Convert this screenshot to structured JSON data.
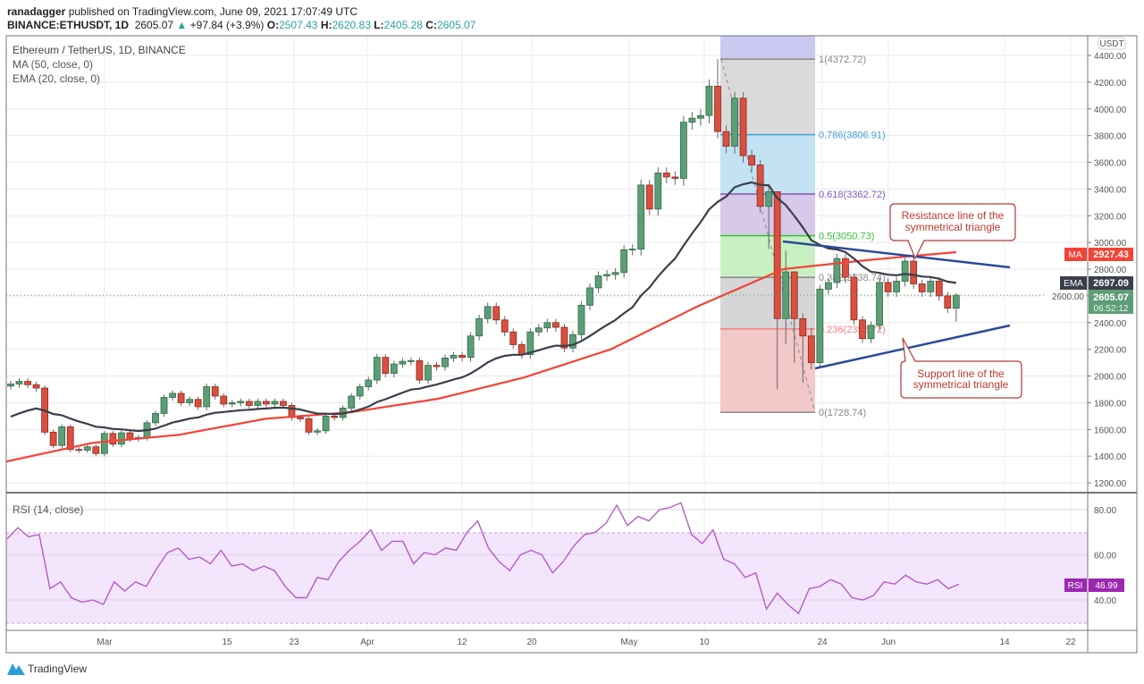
{
  "header": {
    "author": "ranadagger",
    "published": "published on TradingView.com, June 09, 2021 17:07:49 UTC",
    "symbol": "BINANCE:ETHUSDT, 1D",
    "last": "2605.07",
    "change": "+97.84 (+3.9%)",
    "o_label": "O:",
    "o": "2507.43",
    "h_label": "H:",
    "h": "2620.83",
    "l_label": "L:",
    "l": "2405.28",
    "c_label": "C:",
    "c": "2605.07"
  },
  "legend": {
    "title": "Ethereum / TetherUS, 1D, BINANCE",
    "ma": "MA (50, close, 0)",
    "ema": "EMA (20, close, 0)",
    "rsi": "RSI (14, close)"
  },
  "tags": {
    "currency": "USDT",
    "ma_label": "MA",
    "ma_value": "2927.43",
    "ema_label": "EMA",
    "ema_value": "2697.09",
    "price": "2605.07",
    "countdown": "06:52:12",
    "rsi_label": "RSI",
    "rsi_value": "46.99"
  },
  "annotations": {
    "resistance": [
      "Resistance line of the",
      "symmetrical triangle"
    ],
    "support": [
      "Support line of the",
      "symmetrical triangle"
    ]
  },
  "fib": [
    {
      "label": "1(4372.72)",
      "price": 4372.72,
      "color": "#888888"
    },
    {
      "label": "0.786(3806.91)",
      "price": 3806.91,
      "color": "#3fa0d8"
    },
    {
      "label": "0.618(3362.72)",
      "price": 3362.72,
      "color": "#7e57c2"
    },
    {
      "label": "0.5(3050.73)",
      "price": 3050.73,
      "color": "#33c533"
    },
    {
      "label": "0.382(2738.74)",
      "price": 2738.74,
      "color": "#888888"
    },
    {
      "label": "0.236(2352.72)",
      "price": 2352.72,
      "color": "#f08080"
    },
    {
      "label": "0(1728.74)",
      "price": 1728.74,
      "color": "#888888"
    }
  ],
  "footer": {
    "brand": "TradingView"
  },
  "colors": {
    "up": "#5e9e77",
    "down": "#d9503f",
    "ma": "#f44336",
    "ema": "#3a3f4b",
    "rsi": "#b35cc9",
    "trend": "#2a4a9a"
  },
  "chart_data": {
    "type": "candlestick",
    "title": "Ethereum / TetherUS, 1D, BINANCE",
    "start_date": "2021-02-18",
    "closes": [
      1940,
      1960,
      1935,
      1910,
      1580,
      1480,
      1620,
      1450,
      1445,
      1470,
      1420,
      1570,
      1490,
      1575,
      1530,
      1540,
      1650,
      1720,
      1840,
      1870,
      1800,
      1825,
      1770,
      1920,
      1850,
      1790,
      1800,
      1810,
      1780,
      1810,
      1790,
      1810,
      1780,
      1690,
      1680,
      1580,
      1590,
      1700,
      1690,
      1760,
      1850,
      1920,
      1970,
      2140,
      2020,
      2090,
      2110,
      2115,
      1970,
      2080,
      2070,
      2135,
      2155,
      2140,
      2300,
      2430,
      2520,
      2420,
      2330,
      2235,
      2160,
      2330,
      2360,
      2400,
      2365,
      2210,
      2310,
      2530,
      2660,
      2750,
      2760,
      2775,
      2945,
      2950,
      3430,
      3250,
      3520,
      3490,
      3480,
      3900,
      3930,
      3950,
      4170,
      3830,
      3720,
      4080,
      3650,
      3580,
      3270,
      3380,
      2430,
      2780,
      2430,
      2300,
      2100,
      2650,
      2700,
      2880,
      2740,
      2420,
      2280,
      2380,
      2700,
      2630,
      2710,
      2860,
      2690,
      2630,
      2710,
      2600,
      2507.43,
      2605.07
    ],
    "ma50": [
      1360,
      1500,
      1560,
      1680,
      1730,
      1830,
      1990,
      2200,
      2520,
      2800,
      2870,
      2927.43
    ],
    "ema20_last": 2697.09,
    "rsi": [
      67,
      72,
      68,
      69,
      45,
      48,
      41,
      39,
      40,
      38,
      48,
      44,
      48,
      46,
      54,
      61,
      63,
      58,
      59,
      56,
      62,
      55,
      56,
      53,
      55,
      53,
      46,
      41,
      41,
      50,
      49,
      57,
      62,
      66,
      71,
      62,
      66,
      66,
      56,
      61,
      60,
      63,
      62,
      70,
      75,
      63,
      57,
      53,
      60,
      62,
      60,
      52,
      57,
      64,
      69,
      70,
      74,
      82,
      73,
      77,
      75,
      80,
      81,
      83,
      69,
      65,
      71,
      58,
      56,
      50,
      52,
      36,
      43,
      38,
      34,
      45,
      46,
      49,
      47,
      41,
      40,
      42,
      48,
      47,
      51,
      48,
      47,
      49,
      45,
      46.99
    ],
    "y_ticks": [
      1200,
      1400,
      1600,
      1800,
      2000,
      2200,
      2400,
      2600,
      2800,
      3000,
      3200,
      3400,
      3600,
      3800,
      4000,
      4200,
      4400
    ],
    "rsi_ticks": [
      80,
      60,
      40
    ],
    "x_ticks": [
      "Mar",
      "15",
      "23",
      "Apr",
      "12",
      "20",
      "May",
      "10",
      "24",
      "Jun",
      "14",
      "22"
    ],
    "ylim": [
      1200,
      4400
    ]
  }
}
